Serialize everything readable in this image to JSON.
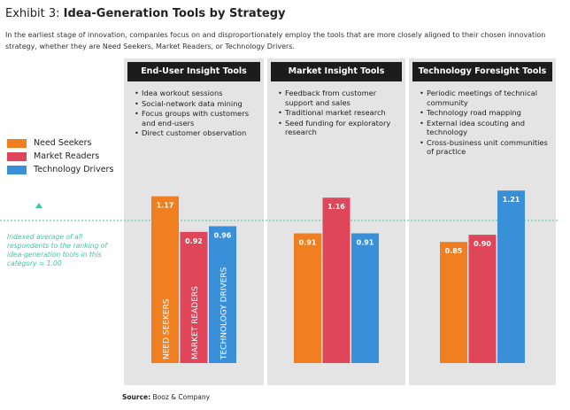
{
  "chart_data": {
    "type": "bar",
    "exhibit": "Exhibit 3:",
    "title": "Idea-Generation Tools by Strategy",
    "subtitle": "In the earliest stage of innovation, companies focus on and disproportionately employ the tools that are more closely aligned to their chosen innovation strategy, whether they are Need Seekers, Market Readers, or Technology Drivers.",
    "categories": [
      "End-User Insight Tools",
      "Market Insight Tools",
      "Technology Foresight Tools"
    ],
    "bullets": [
      [
        "Idea workout sessions",
        "Social-network data mining",
        "Focus groups with customers and end-users",
        "Direct customer observation"
      ],
      [
        "Feedback from customer support and sales",
        "Traditional market research",
        "Seed funding for exploratory research"
      ],
      [
        "Periodic meetings of technical community",
        "Technology road mapping",
        "External idea scouting and technology",
        "Cross-business unit communities of practice"
      ]
    ],
    "series": [
      {
        "name": "Need Seekers",
        "color": "#f07f22",
        "values": [
          1.17,
          0.91,
          0.85
        ],
        "value_labels": [
          "1.17",
          "0.91",
          "0.85"
        ]
      },
      {
        "name": "Market Readers",
        "color": "#e0465a",
        "values": [
          0.92,
          1.16,
          0.9
        ],
        "value_labels": [
          "0.92",
          "1.16",
          "0.90"
        ]
      },
      {
        "name": "Technology Drivers",
        "color": "#3a8fd9",
        "values": [
          0.96,
          0.91,
          1.21
        ],
        "value_labels": [
          "0.96",
          "0.91",
          "1.21"
        ]
      }
    ],
    "bar_labels": [
      "NEED SEEKERS",
      "MARKET READERS",
      "TECHNOLOGY DRIVERS"
    ],
    "ylim": [
      0,
      1.4
    ],
    "reference": {
      "value": 1,
      "color": "#3cc9a8",
      "label": "Indexed average of all respondents to the ranking of idea-generation tools in this category = 1.00"
    },
    "source_label": "Source:",
    "source": "Booz & Company"
  }
}
